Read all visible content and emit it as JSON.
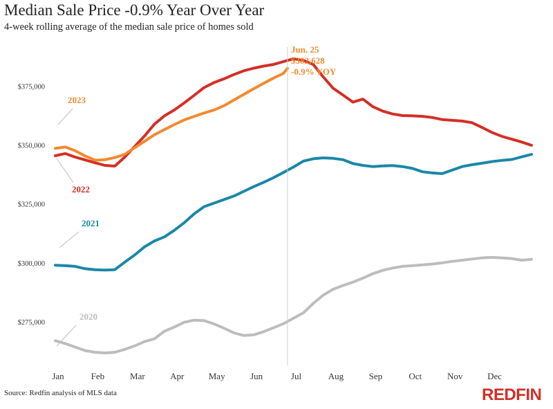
{
  "title": "Median Sale Price -0.9% Year Over Year",
  "subtitle": "4-week rolling average of the median sale price of homes sold",
  "source": "Source: Redfin analysis of MLS data",
  "logo": "REDFIN",
  "chart_data": {
    "type": "line",
    "x_axis": {
      "tick_labels": [
        "Jan",
        "Feb",
        "Mar",
        "Apr",
        "May",
        "Jun",
        "Jul",
        "Aug",
        "Sep",
        "Oct",
        "Nov",
        "Dec"
      ],
      "xlim": [
        0,
        12
      ]
    },
    "y_axis": {
      "ticks": [
        275000,
        300000,
        325000,
        350000,
        375000
      ],
      "tick_labels": [
        "$275,000",
        "$300,000",
        "$325,000",
        "$350,000",
        "$375,000"
      ],
      "ylim": [
        262000,
        394000
      ]
    },
    "grid": false,
    "annotation": {
      "lines": [
        "Jun. 25",
        "$382,628",
        "-0.9% YOY"
      ],
      "x": 5.85,
      "color": "#f28a2e"
    },
    "series": [
      {
        "name": "2020",
        "color": "#bdbdbd",
        "points": [
          [
            0,
            267200
          ],
          [
            0.25,
            266000
          ],
          [
            0.5,
            264500
          ],
          [
            0.75,
            263000
          ],
          [
            1,
            262300
          ],
          [
            1.25,
            262000
          ],
          [
            1.5,
            262300
          ],
          [
            1.75,
            263500
          ],
          [
            2,
            265000
          ],
          [
            2.25,
            266800
          ],
          [
            2.5,
            268000
          ],
          [
            2.75,
            271200
          ],
          [
            3,
            273000
          ],
          [
            3.25,
            275000
          ],
          [
            3.5,
            275900
          ],
          [
            3.75,
            275700
          ],
          [
            4,
            274300
          ],
          [
            4.25,
            272500
          ],
          [
            4.5,
            270500
          ],
          [
            4.75,
            269400
          ],
          [
            5,
            269700
          ],
          [
            5.25,
            271000
          ],
          [
            5.5,
            272700
          ],
          [
            5.75,
            274400
          ],
          [
            6,
            276700
          ],
          [
            6.25,
            279000
          ],
          [
            6.5,
            283000
          ],
          [
            6.75,
            286500
          ],
          [
            7,
            289000
          ],
          [
            7.25,
            290600
          ],
          [
            7.5,
            292000
          ],
          [
            7.75,
            293700
          ],
          [
            8,
            295600
          ],
          [
            8.25,
            297000
          ],
          [
            8.5,
            298000
          ],
          [
            8.75,
            298700
          ],
          [
            9,
            299000
          ],
          [
            9.25,
            299300
          ],
          [
            9.5,
            299700
          ],
          [
            9.75,
            300200
          ],
          [
            10,
            300800
          ],
          [
            10.25,
            301300
          ],
          [
            10.5,
            301800
          ],
          [
            10.75,
            302300
          ],
          [
            11,
            302500
          ],
          [
            11.25,
            302300
          ],
          [
            11.5,
            302000
          ],
          [
            11.75,
            301300
          ],
          [
            12,
            301700
          ]
        ]
      },
      {
        "name": "2021",
        "color": "#1a87a8",
        "points": [
          [
            0,
            299200
          ],
          [
            0.25,
            299000
          ],
          [
            0.5,
            298700
          ],
          [
            0.75,
            297700
          ],
          [
            1,
            297300
          ],
          [
            1.25,
            297100
          ],
          [
            1.5,
            297300
          ],
          [
            1.75,
            300500
          ],
          [
            2,
            303500
          ],
          [
            2.25,
            307000
          ],
          [
            2.5,
            309500
          ],
          [
            2.75,
            311200
          ],
          [
            3,
            314000
          ],
          [
            3.25,
            317200
          ],
          [
            3.5,
            321000
          ],
          [
            3.75,
            324000
          ],
          [
            4,
            325500
          ],
          [
            4.25,
            327000
          ],
          [
            4.5,
            328500
          ],
          [
            4.75,
            330500
          ],
          [
            5,
            332500
          ],
          [
            5.25,
            334300
          ],
          [
            5.5,
            336300
          ],
          [
            5.75,
            338500
          ],
          [
            6,
            340800
          ],
          [
            6.25,
            343300
          ],
          [
            6.5,
            344300
          ],
          [
            6.75,
            344700
          ],
          [
            7,
            344500
          ],
          [
            7.25,
            343900
          ],
          [
            7.5,
            342300
          ],
          [
            7.75,
            341500
          ],
          [
            8,
            341000
          ],
          [
            8.25,
            341300
          ],
          [
            8.5,
            341400
          ],
          [
            8.75,
            341000
          ],
          [
            9,
            340200
          ],
          [
            9.25,
            338800
          ],
          [
            9.5,
            338300
          ],
          [
            9.75,
            338000
          ],
          [
            10,
            339500
          ],
          [
            10.25,
            341000
          ],
          [
            10.5,
            341800
          ],
          [
            10.75,
            342400
          ],
          [
            11,
            343100
          ],
          [
            11.25,
            343600
          ],
          [
            11.5,
            344000
          ],
          [
            11.75,
            345100
          ],
          [
            12,
            346200
          ]
        ]
      },
      {
        "name": "2022",
        "color": "#d32f26",
        "points": [
          [
            0,
            345600
          ],
          [
            0.25,
            346500
          ],
          [
            0.5,
            345000
          ],
          [
            0.75,
            343800
          ],
          [
            1,
            342600
          ],
          [
            1.25,
            341500
          ],
          [
            1.5,
            341200
          ],
          [
            1.75,
            345000
          ],
          [
            2,
            349500
          ],
          [
            2.25,
            354000
          ],
          [
            2.5,
            359000
          ],
          [
            2.75,
            362500
          ],
          [
            3,
            365000
          ],
          [
            3.25,
            368000
          ],
          [
            3.5,
            371200
          ],
          [
            3.75,
            374500
          ],
          [
            4,
            376600
          ],
          [
            4.25,
            378200
          ],
          [
            4.5,
            380000
          ],
          [
            4.75,
            381600
          ],
          [
            5,
            382700
          ],
          [
            5.25,
            383600
          ],
          [
            5.5,
            384300
          ],
          [
            5.75,
            385500
          ],
          [
            6,
            386700
          ],
          [
            6.25,
            386000
          ],
          [
            6.5,
            384300
          ],
          [
            6.75,
            379000
          ],
          [
            7,
            374200
          ],
          [
            7.25,
            371300
          ],
          [
            7.5,
            368300
          ],
          [
            7.75,
            369600
          ],
          [
            8,
            366400
          ],
          [
            8.25,
            364500
          ],
          [
            8.5,
            363300
          ],
          [
            8.75,
            362600
          ],
          [
            9,
            362500
          ],
          [
            9.25,
            362300
          ],
          [
            9.5,
            361800
          ],
          [
            9.75,
            360900
          ],
          [
            10,
            360600
          ],
          [
            10.25,
            360300
          ],
          [
            10.5,
            359600
          ],
          [
            10.75,
            357600
          ],
          [
            11,
            355500
          ],
          [
            11.25,
            353800
          ],
          [
            11.5,
            352600
          ],
          [
            11.75,
            351400
          ],
          [
            12,
            350000
          ]
        ]
      },
      {
        "name": "2023",
        "color": "#f28a2e",
        "points": [
          [
            0,
            348700
          ],
          [
            0.25,
            349300
          ],
          [
            0.5,
            347700
          ],
          [
            0.75,
            345500
          ],
          [
            1,
            343700
          ],
          [
            1.25,
            343900
          ],
          [
            1.5,
            344800
          ],
          [
            1.75,
            346200
          ],
          [
            2,
            349000
          ],
          [
            2.25,
            351700
          ],
          [
            2.5,
            354500
          ],
          [
            2.75,
            356700
          ],
          [
            3,
            358800
          ],
          [
            3.25,
            360800
          ],
          [
            3.5,
            362300
          ],
          [
            3.75,
            363700
          ],
          [
            4,
            365000
          ],
          [
            4.25,
            366800
          ],
          [
            4.5,
            369200
          ],
          [
            4.75,
            371600
          ],
          [
            5,
            374000
          ],
          [
            5.25,
            376300
          ],
          [
            5.5,
            378500
          ],
          [
            5.75,
            380500
          ],
          [
            5.85,
            382628
          ]
        ]
      }
    ],
    "series_labels": [
      {
        "text": "2023",
        "color": "#f28a2e"
      },
      {
        "text": "2022",
        "color": "#d32f26"
      },
      {
        "text": "2021",
        "color": "#1a87a8"
      },
      {
        "text": "2020",
        "color": "#bdbdbd"
      }
    ]
  }
}
